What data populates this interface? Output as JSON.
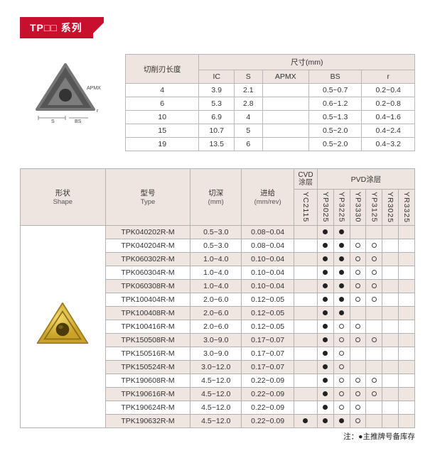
{
  "banner": "TP□□ 系列",
  "dim_header_group": "尺寸(mm)",
  "dim_row_label": "切削刃长度",
  "dim_cols": [
    "IC",
    "S",
    "APMX",
    "BS",
    "r"
  ],
  "dim_rows": [
    {
      "edge": "4",
      "IC": "3.9",
      "S": "2.1",
      "APMX": "",
      "BS": "0.5~0.7",
      "r": "0.2~0.4"
    },
    {
      "edge": "6",
      "IC": "5.3",
      "S": "2.8",
      "APMX": "",
      "BS": "0.6~1.2",
      "r": "0.2~0.8"
    },
    {
      "edge": "10",
      "IC": "6.9",
      "S": "4",
      "APMX": "",
      "BS": "0.5~1.3",
      "r": "0.4~1.6"
    },
    {
      "edge": "15",
      "IC": "10.7",
      "S": "5",
      "APMX": "",
      "BS": "0.5~2.0",
      "r": "0.4~2.4"
    },
    {
      "edge": "19",
      "IC": "13.5",
      "S": "6",
      "APMX": "",
      "BS": "0.5~2.0",
      "r": "0.4~3.2"
    }
  ],
  "main_headers": {
    "shape": "形状",
    "shape_en": "Shape",
    "type": "型号",
    "type_en": "Type",
    "depth": "切深",
    "depth_unit": "(mm)",
    "feed": "进给",
    "feed_unit": "(mm/rev)",
    "cvd": "CVD\n涂层",
    "pvd": "PVD涂层"
  },
  "coatings": [
    "YC2115",
    "YP3025",
    "YP3225",
    "YP3330",
    "YP3125",
    "YR3025",
    "YR3325"
  ],
  "rows": [
    {
      "type": "TPK040202R-M",
      "d": "0.5~3.0",
      "f": "0.08~0.04",
      "m": [
        0,
        1,
        1,
        0,
        0,
        0,
        0
      ]
    },
    {
      "type": "TPK040204R-M",
      "d": "0.5~3.0",
      "f": "0.08~0.04",
      "m": [
        0,
        1,
        1,
        2,
        2,
        0,
        0
      ]
    },
    {
      "type": "TPK060302R-M",
      "d": "1.0~4.0",
      "f": "0.10~0.04",
      "m": [
        0,
        1,
        1,
        2,
        2,
        0,
        0
      ]
    },
    {
      "type": "TPK060304R-M",
      "d": "1.0~4.0",
      "f": "0.10~0.04",
      "m": [
        0,
        1,
        1,
        2,
        2,
        0,
        0
      ]
    },
    {
      "type": "TPK060308R-M",
      "d": "1.0~4.0",
      "f": "0.10~0.04",
      "m": [
        0,
        1,
        1,
        2,
        2,
        0,
        0
      ]
    },
    {
      "type": "TPK100404R-M",
      "d": "2.0~6.0",
      "f": "0.12~0.05",
      "m": [
        0,
        1,
        1,
        2,
        2,
        0,
        0
      ]
    },
    {
      "type": "TPK100408R-M",
      "d": "2.0~6.0",
      "f": "0.12~0.05",
      "m": [
        0,
        1,
        1,
        0,
        0,
        0,
        0
      ]
    },
    {
      "type": "TPK100416R-M",
      "d": "2.0~6.0",
      "f": "0.12~0.05",
      "m": [
        0,
        1,
        2,
        2,
        0,
        0,
        0
      ]
    },
    {
      "type": "TPK150508R-M",
      "d": "3.0~9.0",
      "f": "0.17~0.07",
      "m": [
        0,
        1,
        2,
        2,
        2,
        0,
        0
      ]
    },
    {
      "type": "TPK150516R-M",
      "d": "3.0~9.0",
      "f": "0.17~0.07",
      "m": [
        0,
        1,
        2,
        0,
        0,
        0,
        0
      ]
    },
    {
      "type": "TPK150524R-M",
      "d": "3.0~12.0",
      "f": "0.17~0.07",
      "m": [
        0,
        1,
        2,
        0,
        0,
        0,
        0
      ]
    },
    {
      "type": "TPK190608R-M",
      "d": "4.5~12.0",
      "f": "0.22~0.09",
      "m": [
        0,
        1,
        2,
        2,
        2,
        0,
        0
      ]
    },
    {
      "type": "TPK190616R-M",
      "d": "4.5~12.0",
      "f": "0.22~0.09",
      "m": [
        0,
        1,
        2,
        2,
        2,
        0,
        0
      ]
    },
    {
      "type": "TPK190624R-M",
      "d": "4.5~12.0",
      "f": "0.22~0.09",
      "m": [
        0,
        1,
        2,
        2,
        0,
        0,
        0
      ]
    },
    {
      "type": "TPK190632R-M",
      "d": "4.5~12.0",
      "f": "0.22~0.09",
      "m": [
        1,
        1,
        1,
        2,
        0,
        0,
        0
      ]
    }
  ],
  "legend": "注：●主推牌号备库存",
  "colors": {
    "accent": "#c8102e",
    "header_bg": "#eee4e0"
  },
  "diagram_labels": {
    "S": "S",
    "BS": "BS",
    "r": "r",
    "APMX": "APMX"
  }
}
